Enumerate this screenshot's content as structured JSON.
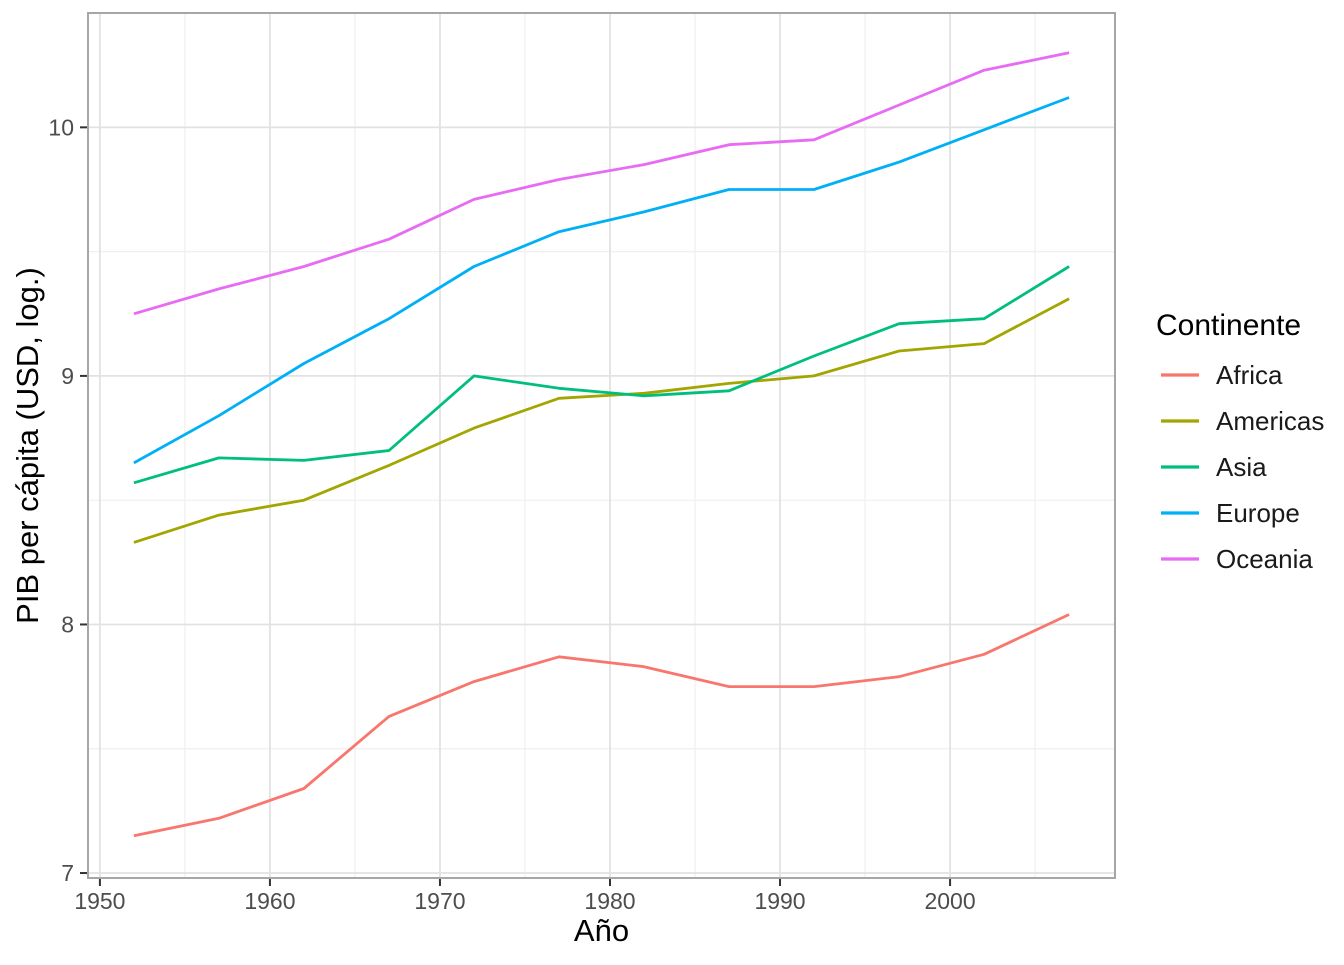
{
  "chart_data": {
    "type": "line",
    "title": "",
    "xlabel": "Año",
    "ylabel": "PIB per cápita (USD, log.)",
    "x": [
      1952,
      1957,
      1962,
      1967,
      1972,
      1977,
      1982,
      1987,
      1992,
      1997,
      2002,
      2007
    ],
    "series": [
      {
        "name": "Africa",
        "color": "#F8766D",
        "values": [
          7.15,
          7.22,
          7.34,
          7.63,
          7.77,
          7.87,
          7.83,
          7.75,
          7.75,
          7.79,
          7.88,
          8.04
        ]
      },
      {
        "name": "Americas",
        "color": "#A3A500",
        "values": [
          8.33,
          8.44,
          8.5,
          8.64,
          8.79,
          8.91,
          8.93,
          8.97,
          9.0,
          9.1,
          9.13,
          9.31
        ]
      },
      {
        "name": "Asia",
        "color": "#00BF7D",
        "values": [
          8.57,
          8.67,
          8.66,
          8.7,
          9.0,
          8.95,
          8.92,
          8.94,
          9.08,
          9.21,
          9.23,
          9.44
        ]
      },
      {
        "name": "Europe",
        "color": "#00B0F6",
        "values": [
          8.65,
          8.84,
          9.05,
          9.23,
          9.44,
          9.58,
          9.66,
          9.75,
          9.75,
          9.86,
          9.99,
          10.12
        ]
      },
      {
        "name": "Oceania",
        "color": "#E76BF3",
        "values": [
          9.25,
          9.35,
          9.44,
          9.55,
          9.71,
          9.79,
          9.85,
          9.93,
          9.95,
          10.09,
          10.23,
          10.3
        ]
      }
    ],
    "xlim": [
      1949.3,
      2009.7
    ],
    "ylim": [
      6.98,
      10.46
    ],
    "x_major_ticks": [
      1950,
      1960,
      1970,
      1980,
      1990,
      2000
    ],
    "x_minor_ticks": [
      1955,
      1965,
      1975,
      1985,
      1995,
      2005
    ],
    "y_major_ticks": [
      7,
      8,
      9,
      10
    ],
    "y_minor_ticks": [
      7.5,
      8.5,
      9.5
    ],
    "grid": true,
    "legend": {
      "title": "Continente",
      "position": "right",
      "entries": [
        "Africa",
        "Americas",
        "Asia",
        "Europe",
        "Oceania"
      ]
    }
  }
}
